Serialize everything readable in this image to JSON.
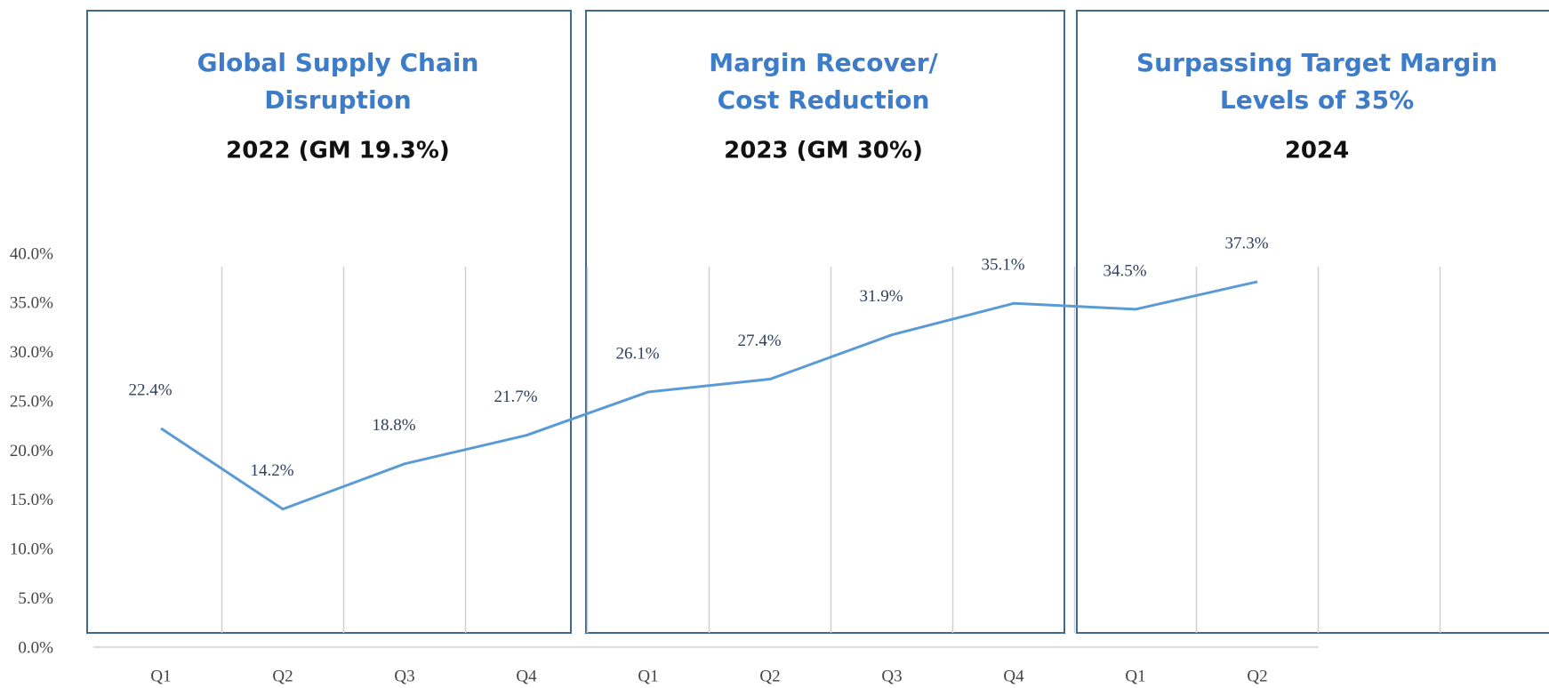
{
  "chart_data": {
    "type": "line",
    "categories": [
      "Q1",
      "Q2",
      "Q3",
      "Q4",
      "Q1",
      "Q2",
      "Q3",
      "Q4",
      "Q1",
      "Q2"
    ],
    "series": [
      {
        "color": "#5b9bd5",
        "values": [
          22.4,
          14.2,
          18.8,
          21.7,
          26.1,
          27.4,
          31.9,
          35.1,
          34.5,
          37.3
        ],
        "value_labels": [
          "22.4%",
          "14.2%",
          "18.8%",
          "21.7%",
          "26.1%",
          "27.4%",
          "31.9%",
          "35.1%",
          "34.5%",
          "37.3%"
        ]
      }
    ],
    "ylim": [
      0,
      40
    ],
    "yticks": [
      {
        "value": 0,
        "label": "0.0%"
      },
      {
        "value": 5,
        "label": "5.0%"
      },
      {
        "value": 10,
        "label": "10.0%"
      },
      {
        "value": 15,
        "label": "15.0%"
      },
      {
        "value": 20,
        "label": "20.0%"
      },
      {
        "value": 25,
        "label": "25.0%"
      },
      {
        "value": 30,
        "label": "30.0%"
      },
      {
        "value": 35,
        "label": "35.0%"
      },
      {
        "value": 40,
        "label": "40.0%"
      }
    ],
    "grid": false,
    "annotations": [
      {
        "title": [
          "Global Supply Chain",
          "Disruption"
        ],
        "subtitle": "2022 (GM 19.3%)"
      },
      {
        "title": [
          "Margin Recover/",
          "Cost Reduction"
        ],
        "subtitle": "2023 (GM 30%)"
      },
      {
        "title": [
          "Surpassing Target Margin",
          "Levels of 35%"
        ],
        "subtitle": "2024"
      }
    ]
  }
}
